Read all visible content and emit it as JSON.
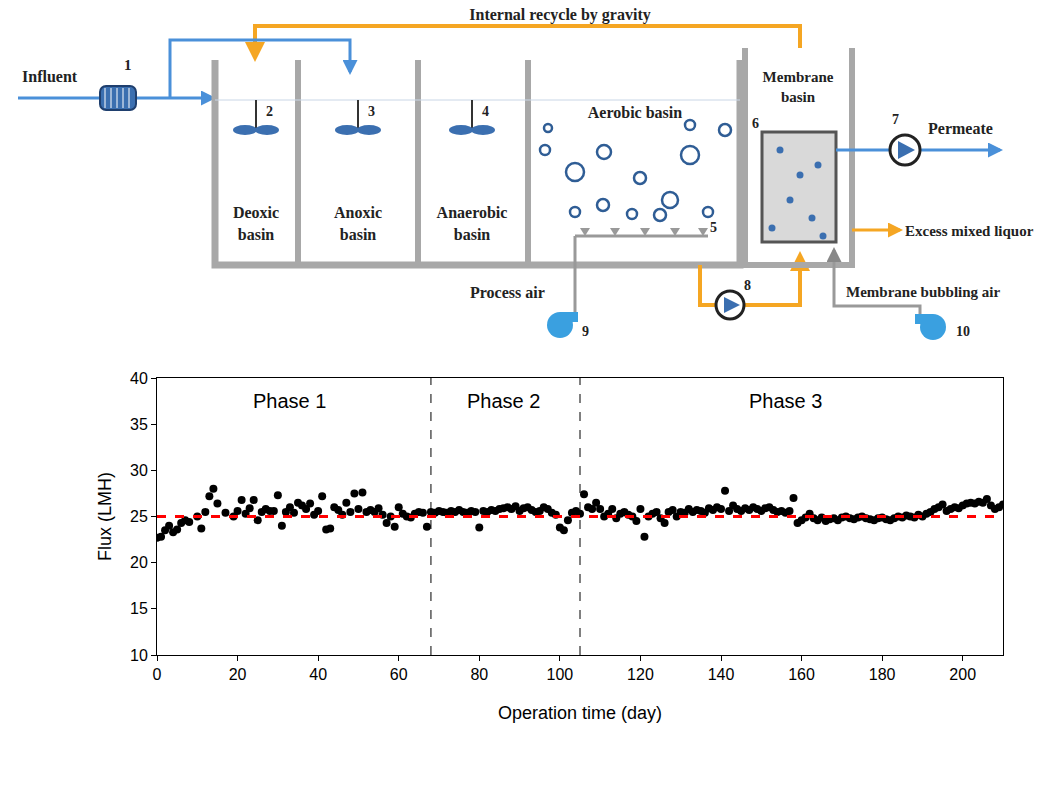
{
  "diagram": {
    "influent": "Influent",
    "internal_recycle": "Internal recycle by gravity",
    "influent_pump": 1,
    "basins": [
      {
        "label": "Deoxic basin",
        "number": 2
      },
      {
        "label": "Anoxic basin",
        "number": 3
      },
      {
        "label": "Anaerobic basin",
        "number": 4
      },
      {
        "label": "Aerobic basin",
        "number": 5
      },
      {
        "label": "Membrane basin",
        "number": 6
      }
    ],
    "permeate": {
      "label": "Permeate",
      "pump": 7
    },
    "transfer_pump": 8,
    "process_air": {
      "label": "Process air",
      "blower": 9
    },
    "membrane_air": {
      "label": "Membrane bubbling air",
      "blower": 10
    },
    "excess": "Excess mixed liquor"
  },
  "chart_data": {
    "type": "scatter",
    "x_label": "Operation time (day)",
    "y_label": "Flux (LMH)",
    "xlim": [
      0,
      210
    ],
    "xticks": [
      0,
      20,
      40,
      60,
      80,
      100,
      120,
      140,
      160,
      180,
      200
    ],
    "ylim": [
      10,
      40
    ],
    "yticks": [
      10,
      15,
      20,
      25,
      30,
      35,
      40
    ],
    "grid": false,
    "vlines": [
      68,
      105
    ],
    "annotations": [
      {
        "text": "Phase 1",
        "x": 33,
        "y": 37.5
      },
      {
        "text": "Phase 2",
        "x": 86,
        "y": 37.5
      },
      {
        "text": "Phase 3",
        "x": 156,
        "y": 37.5
      }
    ],
    "series": [
      {
        "type": "scatter",
        "color": "#000000",
        "marker": "circle",
        "x": [
          0,
          1,
          2,
          3,
          4,
          5,
          6,
          7,
          8,
          10,
          11,
          12,
          13,
          14,
          15,
          17,
          19,
          20,
          21,
          22,
          23,
          24,
          25,
          26,
          27,
          28,
          29,
          30,
          31,
          32,
          33,
          34,
          35,
          36,
          37,
          38,
          39,
          40,
          41,
          42,
          43,
          44,
          45,
          46,
          47,
          48,
          49,
          50,
          51,
          52,
          53,
          54,
          55,
          56,
          57,
          58,
          59,
          60,
          61,
          62,
          63,
          64,
          65,
          66,
          67,
          68,
          69,
          70,
          71,
          72,
          73,
          74,
          75,
          76,
          77,
          78,
          79,
          80,
          81,
          82,
          83,
          84,
          85,
          86,
          87,
          88,
          89,
          90,
          91,
          92,
          93,
          94,
          95,
          96,
          97,
          98,
          99,
          100,
          101,
          102,
          103,
          104,
          105,
          106,
          107,
          108,
          109,
          110,
          111,
          112,
          113,
          114,
          115,
          116,
          117,
          118,
          119,
          120,
          121,
          122,
          123,
          124,
          125,
          126,
          127,
          128,
          129,
          130,
          131,
          132,
          133,
          134,
          135,
          136,
          137,
          138,
          139,
          140,
          141,
          142,
          143,
          144,
          145,
          146,
          147,
          148,
          149,
          150,
          151,
          152,
          153,
          154,
          155,
          156,
          157,
          158,
          159,
          160,
          161,
          162,
          163,
          164,
          165,
          166,
          167,
          168,
          169,
          170,
          171,
          172,
          173,
          174,
          175,
          176,
          177,
          178,
          179,
          180,
          181,
          182,
          183,
          184,
          185,
          186,
          187,
          188,
          189,
          190,
          191,
          192,
          193,
          194,
          195,
          196,
          197,
          198,
          199,
          200,
          201,
          202,
          203,
          204,
          205,
          206,
          207,
          208,
          209,
          210
        ],
        "values": [
          22.7,
          22.8,
          23.5,
          24.0,
          23.3,
          23.6,
          24.3,
          24.6,
          24.4,
          25.0,
          23.7,
          25.5,
          27.2,
          28.0,
          26.4,
          25.4,
          25.0,
          25.6,
          26.8,
          25.3,
          25.9,
          26.8,
          24.6,
          25.5,
          25.8,
          25.6,
          25.6,
          27.3,
          24.0,
          25.5,
          26.0,
          25.4,
          26.5,
          26.2,
          25.8,
          26.4,
          25.2,
          25.6,
          27.2,
          23.6,
          23.7,
          26.0,
          25.7,
          25.2,
          26.5,
          25.5,
          27.5,
          25.8,
          27.6,
          25.5,
          25.7,
          25.5,
          25.9,
          25.2,
          24.3,
          25.0,
          23.9,
          26.0,
          25.3,
          25.0,
          24.9,
          25.3,
          25.5,
          25.4,
          23.9,
          25.5,
          25.4,
          25.6,
          25.5,
          25.4,
          25.6,
          25.5,
          25.7,
          25.5,
          25.4,
          25.6,
          25.5,
          23.8,
          25.6,
          25.5,
          25.7,
          25.6,
          25.8,
          25.9,
          26.0,
          25.8,
          26.1,
          25.6,
          25.9,
          26.0,
          25.7,
          25.5,
          25.6,
          26.0,
          25.8,
          25.4,
          25.2,
          23.8,
          23.5,
          24.6,
          25.4,
          25.6,
          25.3,
          27.4,
          26.0,
          25.8,
          26.5,
          25.8,
          25.0,
          25.3,
          25.8,
          24.8,
          25.3,
          25.5,
          25.2,
          25.0,
          24.5,
          25.8,
          22.8,
          25.0,
          25.3,
          25.5,
          24.8,
          24.3,
          25.5,
          25.7,
          25.0,
          25.5,
          25.4,
          25.8,
          25.5,
          25.7,
          25.6,
          25.4,
          25.9,
          25.7,
          26.0,
          25.8,
          27.8,
          25.6,
          26.2,
          25.8,
          25.6,
          25.9,
          25.7,
          26.0,
          25.8,
          25.6,
          25.9,
          26.0,
          25.7,
          25.5,
          25.6,
          25.4,
          25.6,
          27.0,
          24.3,
          24.6,
          24.9,
          25.3,
          24.8,
          24.6,
          24.9,
          24.5,
          24.7,
          24.8,
          24.6,
          24.9,
          25.0,
          24.8,
          24.7,
          24.9,
          25.0,
          24.8,
          24.7,
          24.6,
          24.8,
          24.9,
          24.7,
          24.6,
          24.8,
          25.0,
          24.9,
          25.1,
          25.0,
          24.9,
          25.2,
          25.0,
          25.3,
          25.5,
          25.8,
          26.0,
          26.3,
          25.6,
          25.8,
          26.0,
          25.9,
          26.2,
          26.4,
          26.5,
          26.4,
          26.6,
          26.5,
          26.9,
          26.2,
          25.8,
          26.0,
          26.3
        ]
      },
      {
        "type": "line",
        "color": "#ff0000",
        "line_style": "dashed",
        "x": [
          0,
          210
        ],
        "values": [
          25,
          25
        ]
      }
    ]
  }
}
